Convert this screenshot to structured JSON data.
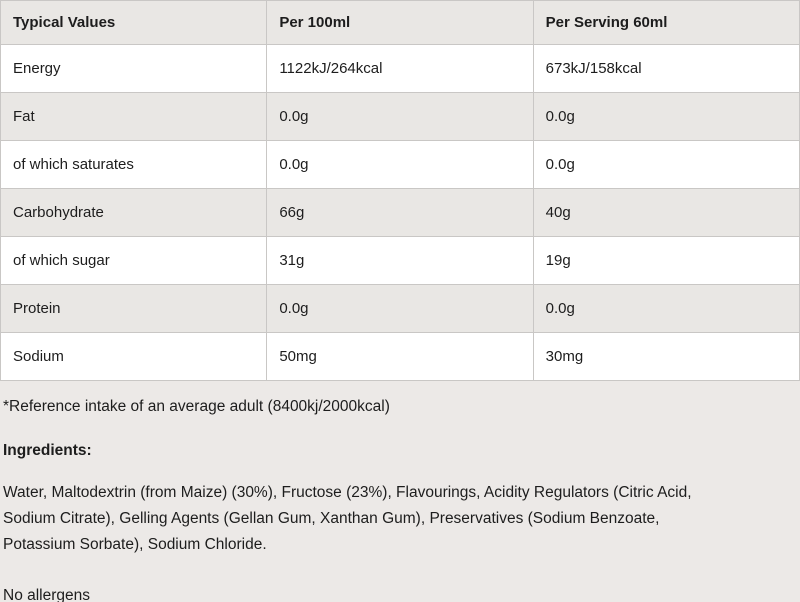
{
  "colors": {
    "stripe_gray": "#e9e7e4",
    "border_gray": "#c9c7c5",
    "page_background": "#ece9e7",
    "text": "#1d1d1d"
  },
  "nutrition_table": {
    "columns": {
      "typical_values": "Typical Values",
      "per_100ml": "Per 100ml",
      "per_serving": "Per Serving 60ml"
    },
    "rows": [
      {
        "label": "Energy",
        "per_100ml": "1122kJ/264kcal",
        "per_serving": "673kJ/158kcal"
      },
      {
        "label": "Fat",
        "per_100ml": "0.0g",
        "per_serving": "0.0g"
      },
      {
        "label": "of which saturates",
        "per_100ml": "0.0g",
        "per_serving": "0.0g"
      },
      {
        "label": "Carbohydrate",
        "per_100ml": "66g",
        "per_serving": "40g"
      },
      {
        "label": "of which sugar",
        "per_100ml": "31g",
        "per_serving": "19g"
      },
      {
        "label": "Protein",
        "per_100ml": "0.0g",
        "per_serving": "0.0g"
      },
      {
        "label": "Sodium",
        "per_100ml": "50mg",
        "per_serving": "30mg"
      }
    ]
  },
  "notes": {
    "reference_note": "*Reference intake of an average adult (8400kj/2000kcal)",
    "ingredients_label": "Ingredients:",
    "ingredients_lines": [
      "Water, Maltodextrin (from Maize) (30%), Fructose (23%), Flavourings, Acidity Regulators (Citric Acid,",
      "Sodium Citrate), Gelling Agents (Gellan Gum, Xanthan Gum), Preservatives (Sodium Benzoate,",
      "Potassium Sorbate), Sodium Chloride."
    ],
    "allergens_note": "No allergens"
  }
}
